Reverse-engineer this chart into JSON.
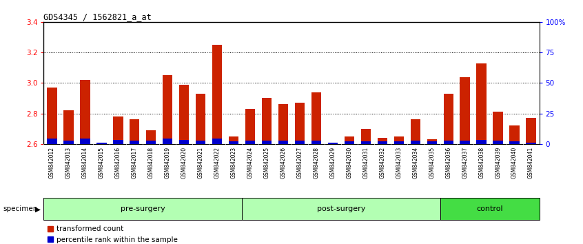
{
  "title": "GDS4345 / 1562821_a_at",
  "samples": [
    "GSM842012",
    "GSM842013",
    "GSM842014",
    "GSM842015",
    "GSM842016",
    "GSM842017",
    "GSM842018",
    "GSM842019",
    "GSM842020",
    "GSM842021",
    "GSM842022",
    "GSM842023",
    "GSM842024",
    "GSM842025",
    "GSM842026",
    "GSM842027",
    "GSM842028",
    "GSM842029",
    "GSM842030",
    "GSM842031",
    "GSM842032",
    "GSM842033",
    "GSM842034",
    "GSM842035",
    "GSM842036",
    "GSM842037",
    "GSM842038",
    "GSM842039",
    "GSM842040",
    "GSM842041"
  ],
  "transformed_count": [
    2.97,
    2.82,
    3.02,
    2.61,
    2.78,
    2.76,
    2.69,
    3.05,
    2.99,
    2.93,
    3.25,
    2.65,
    2.83,
    2.9,
    2.86,
    2.87,
    2.94,
    2.61,
    2.65,
    2.7,
    2.64,
    2.65,
    2.76,
    2.63,
    2.93,
    3.04,
    3.13,
    2.81,
    2.72,
    2.77
  ],
  "percentile_rank": [
    4.5,
    2.5,
    4.5,
    1.0,
    3.5,
    3.0,
    2.5,
    4.5,
    3.5,
    3.0,
    4.5,
    2.0,
    2.5,
    3.0,
    2.5,
    2.5,
    3.0,
    1.0,
    2.0,
    2.0,
    2.0,
    2.0,
    3.0,
    2.0,
    2.5,
    3.0,
    3.5,
    2.5,
    2.0,
    1.0
  ],
  "groups": [
    {
      "name": "pre-surgery",
      "start": 0,
      "end": 12
    },
    {
      "name": "post-surgery",
      "start": 12,
      "end": 24
    },
    {
      "name": "control",
      "start": 24,
      "end": 30
    }
  ],
  "group_colors": [
    "#b3ffb3",
    "#b3ffb3",
    "#44dd44"
  ],
  "ylim_left": [
    2.6,
    3.4
  ],
  "ylim_right": [
    0,
    100
  ],
  "right_ticks": [
    0,
    25,
    50,
    75,
    100
  ],
  "right_tick_labels": [
    "0",
    "25",
    "50",
    "75",
    "100%"
  ],
  "left_ticks": [
    2.6,
    2.8,
    3.0,
    3.2,
    3.4
  ],
  "grid_values": [
    2.8,
    3.0,
    3.2
  ],
  "bar_color_red": "#CC2200",
  "bar_color_blue": "#0000CC",
  "bar_width": 0.6,
  "xticklabel_bg": "#cccccc"
}
